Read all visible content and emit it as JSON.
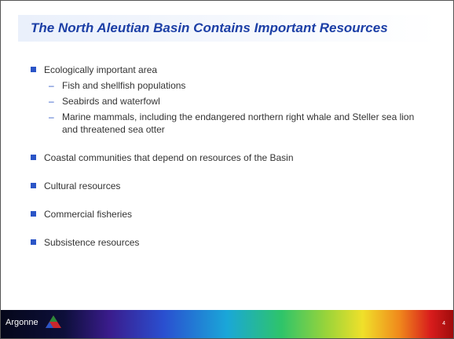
{
  "title": "The North Aleutian Basin Contains Important Resources",
  "bullets": [
    {
      "text": "Ecologically important area",
      "sub": [
        "Fish and shellfish populations",
        "Seabirds and waterfowl",
        "Marine mammals, including the endangered northern right whale and Steller sea lion and threatened sea otter"
      ]
    },
    {
      "text": "Coastal communities that depend on resources of the Basin"
    },
    {
      "text": "Cultural resources"
    },
    {
      "text": "Commercial fisheries"
    },
    {
      "text": "Subsistence resources"
    }
  ],
  "footer": {
    "logo": "Argonne",
    "page": "4"
  }
}
